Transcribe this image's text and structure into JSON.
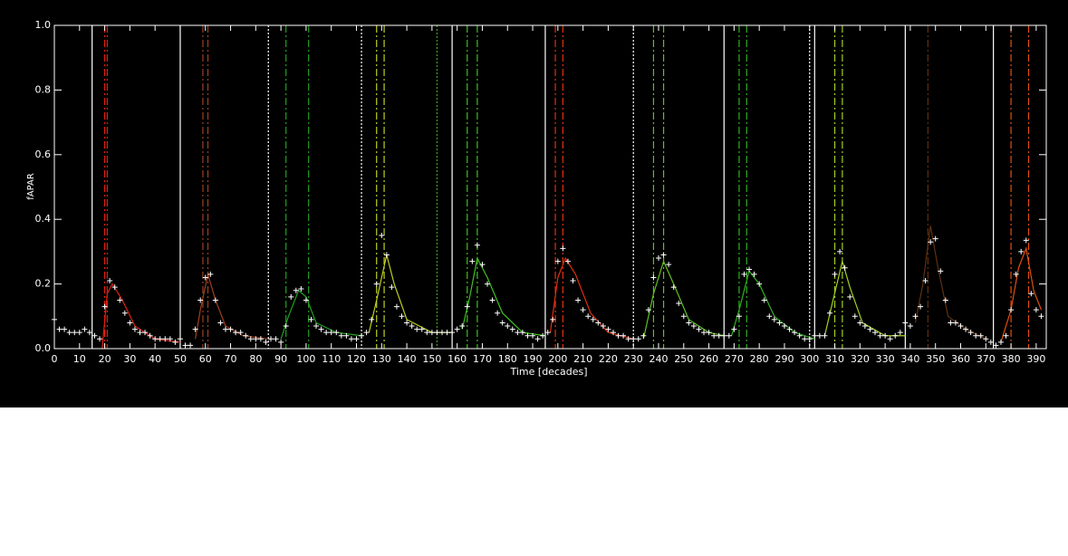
{
  "chart_data": {
    "type": "scatter",
    "xlabel": "Time [decades]",
    "ylabel": "fAPAR",
    "xlim": [
      0,
      394
    ],
    "ylim": [
      0,
      1
    ],
    "xticks": [
      0,
      10,
      20,
      30,
      40,
      50,
      60,
      70,
      80,
      90,
      100,
      110,
      120,
      130,
      140,
      150,
      160,
      170,
      180,
      190,
      200,
      210,
      220,
      230,
      240,
      250,
      260,
      270,
      280,
      290,
      300,
      310,
      320,
      330,
      340,
      350,
      360,
      370,
      380,
      390
    ],
    "yticks": [
      {
        "value": 0,
        "label": "0.0"
      },
      {
        "value": 0.2,
        "label": "0.2"
      },
      {
        "value": 0.4,
        "label": "0.4"
      },
      {
        "value": 0.6,
        "label": "0.6"
      },
      {
        "value": 0.8,
        "label": "0.8"
      },
      {
        "value": 1,
        "label": "1.0"
      }
    ],
    "color": "#ffffff",
    "x": [
      0,
      2,
      4,
      6,
      8,
      10,
      12,
      14,
      16,
      18,
      20,
      22,
      24,
      26,
      28,
      30,
      32,
      34,
      36,
      38,
      40,
      42,
      44,
      46,
      48,
      50,
      52,
      54,
      56,
      58,
      60,
      62,
      64,
      66,
      68,
      70,
      72,
      74,
      76,
      78,
      80,
      82,
      84,
      86,
      88,
      90,
      92,
      94,
      96,
      98,
      100,
      102,
      104,
      106,
      108,
      110,
      112,
      114,
      116,
      118,
      120,
      122,
      124,
      126,
      128,
      130,
      132,
      134,
      136,
      138,
      140,
      142,
      144,
      146,
      148,
      150,
      152,
      154,
      156,
      158,
      160,
      162,
      164,
      166,
      168,
      170,
      172,
      174,
      176,
      178,
      180,
      182,
      184,
      186,
      188,
      190,
      192,
      194,
      196,
      198,
      200,
      202,
      204,
      206,
      208,
      210,
      212,
      214,
      216,
      218,
      220,
      222,
      224,
      226,
      228,
      230,
      232,
      234,
      236,
      238,
      240,
      242,
      244,
      246,
      248,
      250,
      252,
      254,
      256,
      258,
      260,
      262,
      264,
      266,
      268,
      270,
      272,
      274,
      276,
      278,
      280,
      282,
      284,
      286,
      288,
      290,
      292,
      294,
      296,
      298,
      300,
      302,
      304,
      306,
      308,
      310,
      312,
      314,
      316,
      318,
      320,
      322,
      324,
      326,
      328,
      330,
      332,
      334,
      336,
      338,
      340,
      342,
      344,
      346,
      348,
      350,
      352,
      354,
      356,
      358,
      360,
      362,
      364,
      366,
      368,
      370,
      372,
      374,
      376,
      378,
      380,
      382,
      384,
      386,
      388,
      390,
      392
    ],
    "values": [
      0.09,
      0.06,
      0.06,
      0.05,
      0.05,
      0.05,
      0.06,
      0.05,
      0.04,
      0.03,
      0.13,
      0.21,
      0.19,
      0.15,
      0.11,
      0.08,
      0.06,
      0.05,
      0.05,
      0.04,
      0.03,
      0.03,
      0.03,
      0.03,
      0.02,
      0.03,
      0.01,
      0.01,
      0.06,
      0.15,
      0.22,
      0.23,
      0.15,
      0.08,
      0.06,
      0.06,
      0.05,
      0.05,
      0.04,
      0.03,
      0.03,
      0.03,
      0.02,
      0.03,
      0.03,
      0.02,
      0.07,
      0.16,
      0.18,
      0.185,
      0.15,
      0.09,
      0.07,
      0.06,
      0.05,
      0.05,
      0.05,
      0.04,
      0.04,
      0.03,
      0.03,
      0.04,
      0.05,
      0.09,
      0.2,
      0.35,
      0.29,
      0.19,
      0.13,
      0.1,
      0.08,
      0.07,
      0.06,
      0.06,
      0.05,
      0.05,
      0.05,
      0.05,
      0.05,
      0.05,
      0.06,
      0.07,
      0.13,
      0.27,
      0.32,
      0.26,
      0.2,
      0.15,
      0.11,
      0.08,
      0.07,
      0.06,
      0.05,
      0.05,
      0.04,
      0.04,
      0.03,
      0.04,
      0.05,
      0.09,
      0.27,
      0.31,
      0.27,
      0.21,
      0.15,
      0.12,
      0.1,
      0.09,
      0.08,
      0.07,
      0.06,
      0.05,
      0.04,
      0.04,
      0.03,
      0.03,
      0.03,
      0.04,
      0.12,
      0.22,
      0.28,
      0.29,
      0.26,
      0.19,
      0.14,
      0.1,
      0.08,
      0.07,
      0.06,
      0.05,
      0.05,
      0.04,
      0.04,
      0.04,
      0.04,
      0.06,
      0.1,
      0.23,
      0.245,
      0.23,
      0.2,
      0.15,
      0.1,
      0.09,
      0.08,
      0.07,
      0.06,
      0.05,
      0.04,
      0.03,
      0.03,
      0.04,
      0.04,
      0.04,
      0.11,
      0.23,
      0.3,
      0.25,
      0.16,
      0.1,
      0.08,
      0.07,
      0.06,
      0.05,
      0.04,
      0.04,
      0.03,
      0.04,
      0.05,
      0.08,
      0.07,
      0.1,
      0.13,
      0.21,
      0.33,
      0.34,
      0.24,
      0.15,
      0.08,
      0.08,
      0.07,
      0.06,
      0.05,
      0.04,
      0.04,
      0.03,
      0.02,
      0.01,
      0.02,
      0.04,
      0.12,
      0.23,
      0.3,
      0.335,
      0.17,
      0.12,
      0.1
    ],
    "fits": [
      {
        "color": "#e02010",
        "x": [
          19,
          21,
          23,
          27,
          32,
          40,
          50
        ],
        "values": [
          0,
          0.17,
          0.2,
          0.15,
          0.07,
          0.03,
          0.02
        ]
      },
      {
        "color": "#a04020",
        "x": [
          56,
          58,
          61,
          64,
          68,
          75,
          85
        ],
        "values": [
          0.03,
          0.12,
          0.23,
          0.15,
          0.07,
          0.04,
          0.03
        ]
      },
      {
        "color": "#20a020",
        "x": [
          90,
          93,
          97,
          100,
          104,
          112,
          122
        ],
        "values": [
          0.03,
          0.1,
          0.18,
          0.16,
          0.08,
          0.05,
          0.04
        ]
      },
      {
        "color": "#c0d020",
        "x": [
          125,
          128,
          132,
          135,
          140,
          150,
          158
        ],
        "values": [
          0.05,
          0.15,
          0.29,
          0.2,
          0.09,
          0.05,
          0.05
        ]
      },
      {
        "color": "#40c020",
        "x": [
          162,
          165,
          168,
          172,
          178,
          186,
          195
        ],
        "values": [
          0.06,
          0.16,
          0.28,
          0.22,
          0.11,
          0.05,
          0.04
        ]
      },
      {
        "color": "#e03010",
        "x": [
          197,
          200,
          203,
          207,
          213,
          220,
          230
        ],
        "values": [
          0.05,
          0.22,
          0.28,
          0.23,
          0.11,
          0.05,
          0.03
        ]
      },
      {
        "color": "#60c020",
        "x": [
          234,
          238,
          242,
          246,
          252,
          260,
          266
        ],
        "values": [
          0.03,
          0.17,
          0.27,
          0.2,
          0.09,
          0.05,
          0.04
        ]
      },
      {
        "color": "#30b020",
        "x": [
          269,
          272,
          276,
          280,
          286,
          294,
          302
        ],
        "values": [
          0.04,
          0.12,
          0.24,
          0.2,
          0.1,
          0.05,
          0.03
        ]
      },
      {
        "color": "#a0d020",
        "x": [
          306,
          309,
          313,
          316,
          321,
          330,
          338
        ],
        "values": [
          0.04,
          0.14,
          0.27,
          0.19,
          0.08,
          0.04,
          0.04
        ]
      },
      {
        "color": "#603010",
        "x": [
          342,
          345,
          348,
          351,
          355,
          362,
          370
        ],
        "values": [
          0.08,
          0.2,
          0.38,
          0.25,
          0.1,
          0.06,
          0.03
        ]
      },
      {
        "color": "#e05010",
        "x": [
          376,
          380,
          383,
          386,
          389,
          392
        ],
        "values": [
          0.02,
          0.12,
          0.25,
          0.31,
          0.18,
          0.12
        ]
      }
    ],
    "vlines": [
      {
        "x": 15,
        "color": "#ffffff",
        "dash": "none"
      },
      {
        "x": 20,
        "color": "#e02010",
        "dash": "8,3,2,3"
      },
      {
        "x": 21,
        "color": "#e02010",
        "dash": "8,3,2,3"
      },
      {
        "x": 50,
        "color": "#ffffff",
        "dash": "none"
      },
      {
        "x": 59,
        "color": "#a04020",
        "dash": "8,3,2,3"
      },
      {
        "x": 61,
        "color": "#a04020",
        "dash": "8,3,2,3"
      },
      {
        "x": 85,
        "color": "#ffffff",
        "dash": "2,2"
      },
      {
        "x": 92,
        "color": "#20a020",
        "dash": "8,3,2,3"
      },
      {
        "x": 101,
        "color": "#20a020",
        "dash": "8,3,2,3"
      },
      {
        "x": 122,
        "color": "#ffffff",
        "dash": "2,2"
      },
      {
        "x": 128,
        "color": "#c0d020",
        "dash": "8,3,2,3"
      },
      {
        "x": 131,
        "color": "#c0d020",
        "dash": "8,3,2,3"
      },
      {
        "x": 152,
        "color": "#40a020",
        "dash": "2,2"
      },
      {
        "x": 158,
        "color": "#ffffff",
        "dash": "none"
      },
      {
        "x": 164,
        "color": "#40c020",
        "dash": "8,3,2,3"
      },
      {
        "x": 168,
        "color": "#40c020",
        "dash": "8,3,2,3"
      },
      {
        "x": 195,
        "color": "#ffffff",
        "dash": "none"
      },
      {
        "x": 199,
        "color": "#e03010",
        "dash": "8,3,2,3"
      },
      {
        "x": 202,
        "color": "#e03010",
        "dash": "8,3,2,3"
      },
      {
        "x": 230,
        "color": "#ffffff",
        "dash": "2,2"
      },
      {
        "x": 238,
        "color": "#60c020",
        "dash": "8,3,2,3"
      },
      {
        "x": 242,
        "color": "#60c020",
        "dash": "8,3,2,3"
      },
      {
        "x": 266,
        "color": "#ffffff",
        "dash": "none"
      },
      {
        "x": 272,
        "color": "#30b020",
        "dash": "8,3,2,3"
      },
      {
        "x": 275,
        "color": "#30b020",
        "dash": "8,3,2,3"
      },
      {
        "x": 300,
        "color": "#ffffff",
        "dash": "2,2"
      },
      {
        "x": 302,
        "color": "#ffffff",
        "dash": "none"
      },
      {
        "x": 310,
        "color": "#a0d020",
        "dash": "8,3,2,3"
      },
      {
        "x": 313,
        "color": "#a0d020",
        "dash": "8,3,2,3"
      },
      {
        "x": 338,
        "color": "#ffffff",
        "dash": "none"
      },
      {
        "x": 347,
        "color": "#603010",
        "dash": "8,3,2,3"
      },
      {
        "x": 373,
        "color": "#ffffff",
        "dash": "none"
      },
      {
        "x": 380,
        "color": "#e05010",
        "dash": "8,3,2,3"
      },
      {
        "x": 387,
        "color": "#e05010",
        "dash": "8,3,2,3"
      }
    ]
  }
}
